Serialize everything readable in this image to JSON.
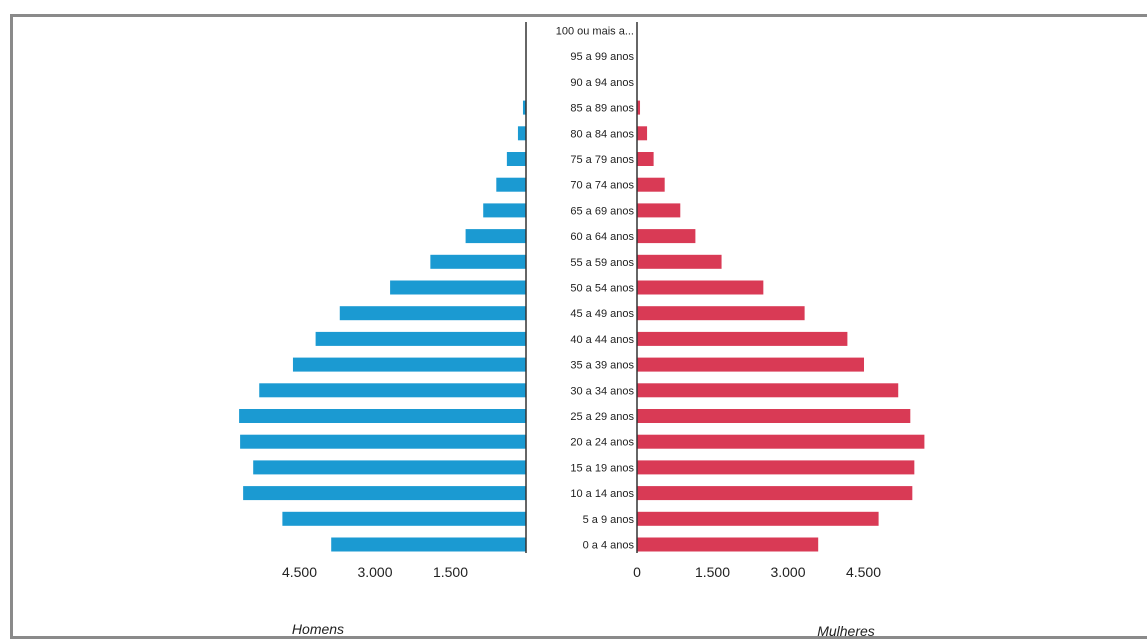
{
  "chart_data": {
    "type": "bar",
    "orientation": "horizontal",
    "layout": "population-pyramid",
    "categories": [
      "100 ou mais a...",
      "95 a 99 anos",
      "90 a 94 anos",
      "85 a 89 anos",
      "80 a 84 anos",
      "75 a 79 anos",
      "70 a 74 anos",
      "65 a 69 anos",
      "60 a 64 anos",
      "55 a 59 anos",
      "50 a 54 anos",
      "45 a 49 anos",
      "40 a 44 anos",
      "35 a 39 anos",
      "30 a 34 anos",
      "25 a 29 anos",
      "20 a 24 anos",
      "15 a 19 anos",
      "10 a 14 anos",
      "5 a 9 anos",
      "0 a 4 anos"
    ],
    "series": [
      {
        "name": "Homens",
        "color": "#1b9ad2",
        "values": [
          0,
          0,
          0,
          60,
          160,
          380,
          590,
          850,
          1200,
          1900,
          2700,
          3700,
          4180,
          4630,
          5300,
          5700,
          5680,
          5420,
          5620,
          4840,
          3870
        ]
      },
      {
        "name": "Mulheres",
        "color": "#d93a55",
        "values": [
          0,
          0,
          0,
          60,
          200,
          330,
          550,
          860,
          1160,
          1680,
          2510,
          3330,
          4180,
          4510,
          5190,
          5430,
          5710,
          5510,
          5470,
          4800,
          3600
        ]
      }
    ],
    "x_ticks_left": [
      "4.500",
      "3.000",
      "1.500"
    ],
    "x_ticks_right": [
      "0",
      "1.500",
      "3.000",
      "4.500"
    ],
    "xlabel_left": "Homens",
    "xlabel_right": "Mulheres",
    "xlim": [
      0,
      6000
    ],
    "grid": false,
    "legend": "none"
  }
}
